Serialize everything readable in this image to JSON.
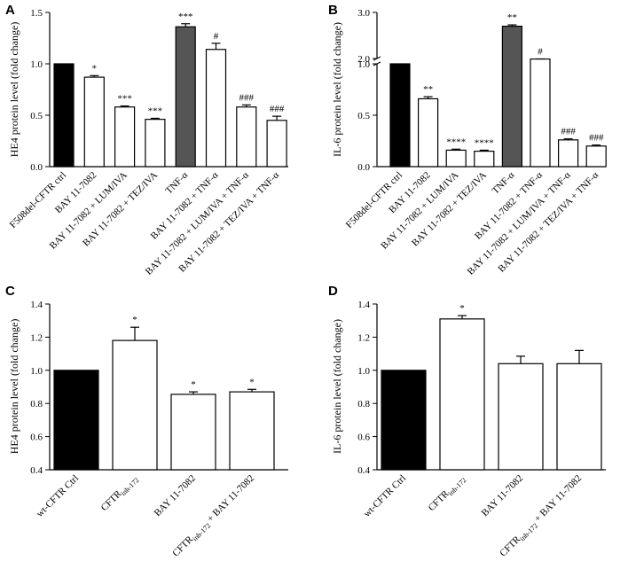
{
  "colors": {
    "black": "#000000",
    "dark_gray": "#555555",
    "white": "#ffffff",
    "axis": "#000000"
  },
  "chart_data": [
    {
      "panel": "A",
      "type": "bar",
      "ylabel": "HE4 protein level (fold change)",
      "ylim": [
        0,
        1.5
      ],
      "yticks": [
        "0.0",
        "0.5",
        "1.0",
        "1.5"
      ],
      "categories": [
        "F508del-CFTR ctrl",
        "BAY 11-7082",
        "BAY 11-7082 + LUM/IVA",
        "BAY 11-7082 + TEZ/IVA",
        "TNF-α",
        "BAY 11-7082 + TNF-α",
        "BAY 11-7082 + LUM/IVA + TNF-α",
        "BAY 11-7082 + TEZ/IVA + TNF-α"
      ],
      "values": [
        1.0,
        0.87,
        0.58,
        0.46,
        1.36,
        1.14,
        0.58,
        0.45
      ],
      "errors": [
        0,
        0.015,
        0.01,
        0.01,
        0.03,
        0.06,
        0.02,
        0.04
      ],
      "fills": [
        "black",
        "white",
        "white",
        "white",
        "dark_gray",
        "white",
        "white",
        "white"
      ],
      "significance": [
        "",
        "*",
        "***",
        "***",
        "***",
        "#",
        "###",
        "###"
      ]
    },
    {
      "panel": "B",
      "type": "bar",
      "ylabel": "IL-6 protein level (fold change)",
      "ylim": [
        0,
        3.0
      ],
      "axis_break": [
        1.0,
        2.0
      ],
      "yticks": [
        "0.0",
        "0.5",
        "1.0",
        "2.0",
        "3.0"
      ],
      "categories": [
        "F508del-CFTR ctrl",
        "BAY 11-7082",
        "BAY 11-7082 + LUM/IVA",
        "BAY 11-7082 + TEZ/IVA",
        "TNF-α",
        "BAY 11-7082 + TNF-α",
        "BAY 11-7082 + LUM/IVA + TNF-α",
        "BAY 11-7082 + TEZ/IVA + TNF-α"
      ],
      "values": [
        1.0,
        0.66,
        0.16,
        0.15,
        2.7,
        1.9,
        0.26,
        0.2
      ],
      "errors": [
        0,
        0.02,
        0.01,
        0.01,
        0.03,
        0.02,
        0.01,
        0.01
      ],
      "fills": [
        "black",
        "white",
        "white",
        "white",
        "dark_gray",
        "white",
        "white",
        "white"
      ],
      "significance": [
        "",
        "**",
        "****",
        "****",
        "**",
        "#",
        "###",
        "###"
      ]
    },
    {
      "panel": "C",
      "type": "bar",
      "ylabel": "HE4 protein level (fold change)",
      "ylim": [
        0.4,
        1.4
      ],
      "yticks": [
        "0.4",
        "0.6",
        "0.8",
        "1.0",
        "1.2",
        "1.4"
      ],
      "categories": [
        "wt-CFTR Ctrl",
        "CFTRinh-172",
        "BAY 11-7082",
        "CFTRinh-172 + BAY 11-7082"
      ],
      "category_parts": [
        [
          "wt-CFTR Ctrl",
          ""
        ],
        [
          "CFTR",
          "inh-172"
        ],
        [
          "BAY 11-7082",
          ""
        ],
        [
          "CFTR",
          "inh-172",
          " + BAY 11-7082"
        ]
      ],
      "values": [
        1.0,
        1.18,
        0.855,
        0.87
      ],
      "errors": [
        0,
        0.08,
        0.015,
        0.015
      ],
      "fills": [
        "black",
        "white",
        "white",
        "white"
      ],
      "significance": [
        "",
        "*",
        "*",
        "*"
      ]
    },
    {
      "panel": "D",
      "type": "bar",
      "ylabel": "IL-6 protein level (fold change)",
      "ylim": [
        0.4,
        1.4
      ],
      "yticks": [
        "0.4",
        "0.6",
        "0.8",
        "1.0",
        "1.2",
        "1.4"
      ],
      "categories": [
        "wt-CFTR Ctrl",
        "CFTRinh-172",
        "BAY 11-7082",
        "CFTRinh-172 + BAY 11-7082"
      ],
      "category_parts": [
        [
          "wt-CFTR Ctrl",
          ""
        ],
        [
          "CFTR",
          "inh-172"
        ],
        [
          "BAY 11-7082",
          ""
        ],
        [
          "CFTR",
          "inh-172",
          " + BAY 11-7082"
        ]
      ],
      "values": [
        1.0,
        1.31,
        1.04,
        1.04
      ],
      "errors": [
        0,
        0.02,
        0.045,
        0.08
      ],
      "fills": [
        "black",
        "white",
        "white",
        "white"
      ],
      "significance": [
        "",
        "*",
        "",
        ""
      ]
    }
  ]
}
